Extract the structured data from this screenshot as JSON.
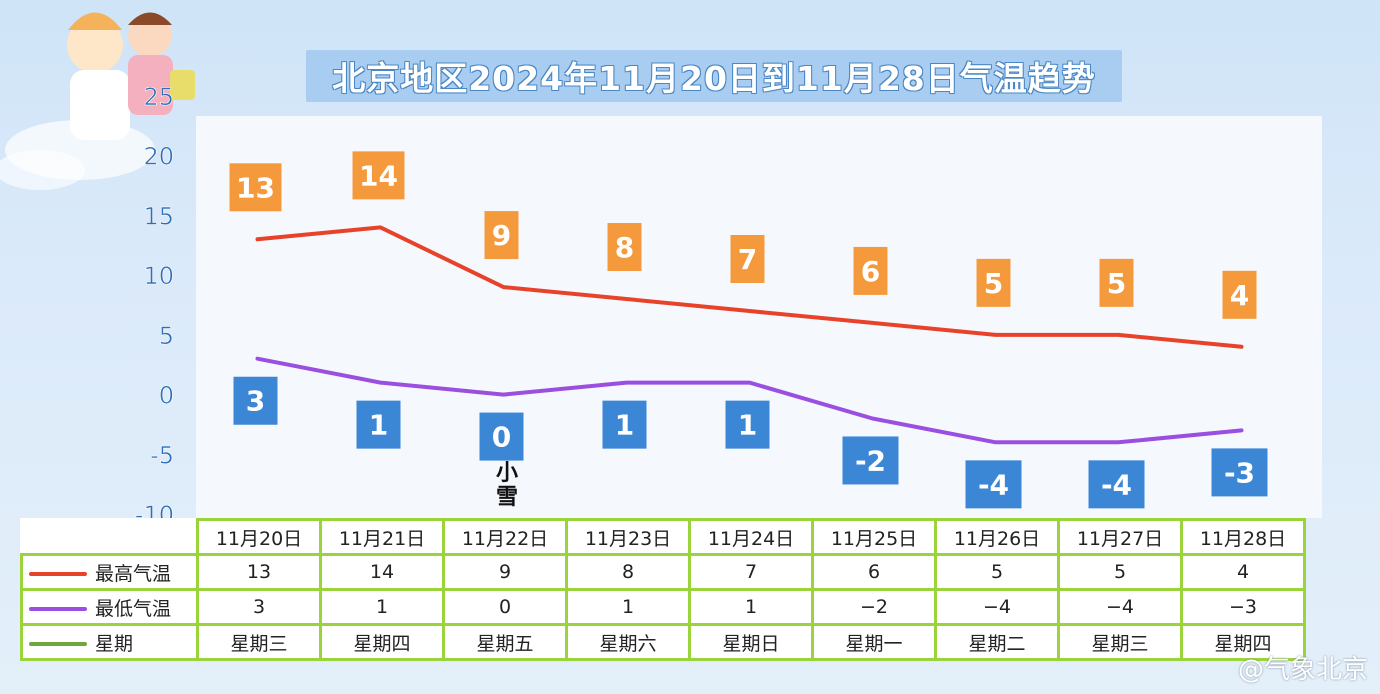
{
  "title": "北京地区2024年11月20日到11月28日气温趋势",
  "snow_note": "小雪",
  "watermark": "@气象北京",
  "colors": {
    "high_line": "#e8432a",
    "low_line": "#9b4fe0",
    "week_line": "#6fa83a",
    "high_box": "#f59a3c",
    "low_box": "#3c86d6",
    "table_border": "#9bd33a"
  },
  "chart_data": {
    "type": "line",
    "title": "北京地区2024年11月20日到11月28日气温趋势",
    "categories": [
      "11月20日",
      "11月21日",
      "11月22日",
      "11月23日",
      "11月24日",
      "11月25日",
      "11月26日",
      "11月27日",
      "11月28日"
    ],
    "y_ticks": [
      "25",
      "20",
      "15",
      "10",
      "5",
      "0",
      "-5",
      "-10"
    ],
    "ylim": [
      -10,
      25
    ],
    "grid": false,
    "series": [
      {
        "name": "最高气温",
        "values": [
          13,
          14,
          9,
          8,
          7,
          6,
          5,
          5,
          4
        ]
      },
      {
        "name": "最低气温",
        "values": [
          3,
          1,
          0,
          1,
          1,
          -2,
          -4,
          -4,
          -3
        ]
      }
    ],
    "high_labels": [
      "13",
      "14",
      "9",
      "8",
      "7",
      "6",
      "5",
      "5",
      "4"
    ],
    "low_labels": [
      "3",
      "1",
      "0",
      "1",
      "1",
      "-2",
      "-4",
      "-4",
      "-3"
    ]
  },
  "table": {
    "dates": [
      "11月20日",
      "11月21日",
      "11月22日",
      "11月23日",
      "11月24日",
      "11月25日",
      "11月26日",
      "11月27日",
      "11月28日"
    ],
    "rows": [
      {
        "label": "最高气温",
        "values": [
          "13",
          "14",
          "9",
          "8",
          "7",
          "6",
          "5",
          "5",
          "4"
        ]
      },
      {
        "label": "最低气温",
        "values": [
          "3",
          "1",
          "0",
          "1",
          "1",
          "−2",
          "−4",
          "−4",
          "−3"
        ]
      },
      {
        "label": "星期",
        "values": [
          "星期三",
          "星期四",
          "星期五",
          "星期六",
          "星期日",
          "星期一",
          "星期二",
          "星期三",
          "星期四"
        ]
      }
    ]
  }
}
